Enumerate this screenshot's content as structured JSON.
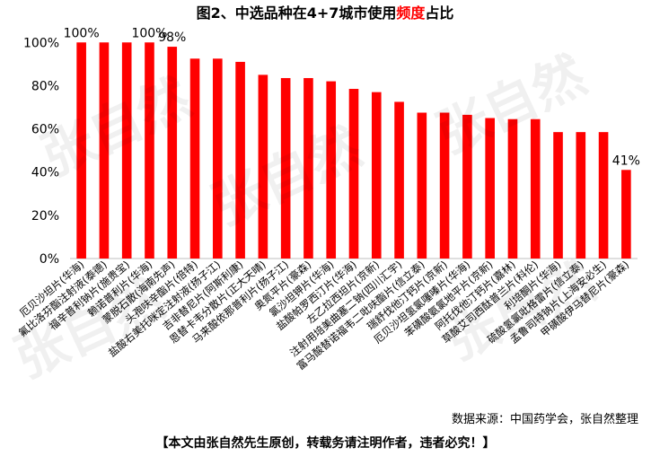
{
  "chart_data": {
    "type": "bar",
    "title_prefix": "图2、中选品种在4+7城市使用",
    "title_highlight": "频度",
    "title_suffix": "占比",
    "highlight_color": "#ff0000",
    "bar_color": "#ff0000",
    "categories": [
      "厄贝沙坦片(华海)",
      "氟比洛芬酯注射液(泰德)",
      "福辛普利钠片(施贵宝)",
      "赖诺普利片(华海)",
      "蒙脱石散(海南先声)",
      "头孢呋辛酯片(倍特)",
      "盐酸右美托咪定注射液(扬子江)",
      "吉非替尼片(阿斯利康)",
      "恩替卡韦分散片(正大天晴)",
      "马来酸依那普利片(扬子江)",
      "奥氮平片(豪森)",
      "氯沙坦钾片(华海)",
      "盐酸帕罗西汀片(华海)",
      "左乙拉西坦片(京新)",
      "注射用培美曲塞二钠(四川汇宇)",
      "富马酸替诺福韦二吡呋酯片(信立泰)",
      "瑞舒伐他汀钙片(京新)",
      "厄贝沙坦氢氯噻嗪片(华海)",
      "苯磺酸氨氯地平片(京新)",
      "阿托伐他汀钙片(嘉林)",
      "草酸艾司西酞普兰片(科伦)",
      "利培酮片(华海)",
      "硫酸氢氯吡格雷片(信立泰)",
      "孟鲁司特钠片(上海安必生)",
      "甲磺酸伊马替尼片(豪森)"
    ],
    "values": [
      100,
      100,
      100,
      100,
      98,
      92.5,
      92.5,
      91,
      85,
      83.5,
      83.5,
      82,
      78.5,
      77,
      72.5,
      67.5,
      67.5,
      66.5,
      65,
      64.5,
      64.5,
      58.5,
      58.5,
      58.5,
      41
    ],
    "data_labels": [
      {
        "index": 0,
        "text": "100%"
      },
      {
        "index": 3,
        "text": "100%"
      },
      {
        "index": 4,
        "text": "98%"
      },
      {
        "index": 24,
        "text": "41%"
      }
    ],
    "y_ticks": [
      "0%",
      "20%",
      "40%",
      "60%",
      "80%",
      "100%"
    ],
    "y_tick_values": [
      0,
      20,
      40,
      60,
      80,
      100
    ],
    "ylim": [
      0,
      108
    ],
    "grid": false,
    "xlabel": "",
    "ylabel": ""
  },
  "watermark_text": "张自然",
  "footer": {
    "source": "数据来源：中国药学会，张自然整理",
    "note": "【本文由张自然先生原创，转载务请注明作者，违者必究！】"
  }
}
